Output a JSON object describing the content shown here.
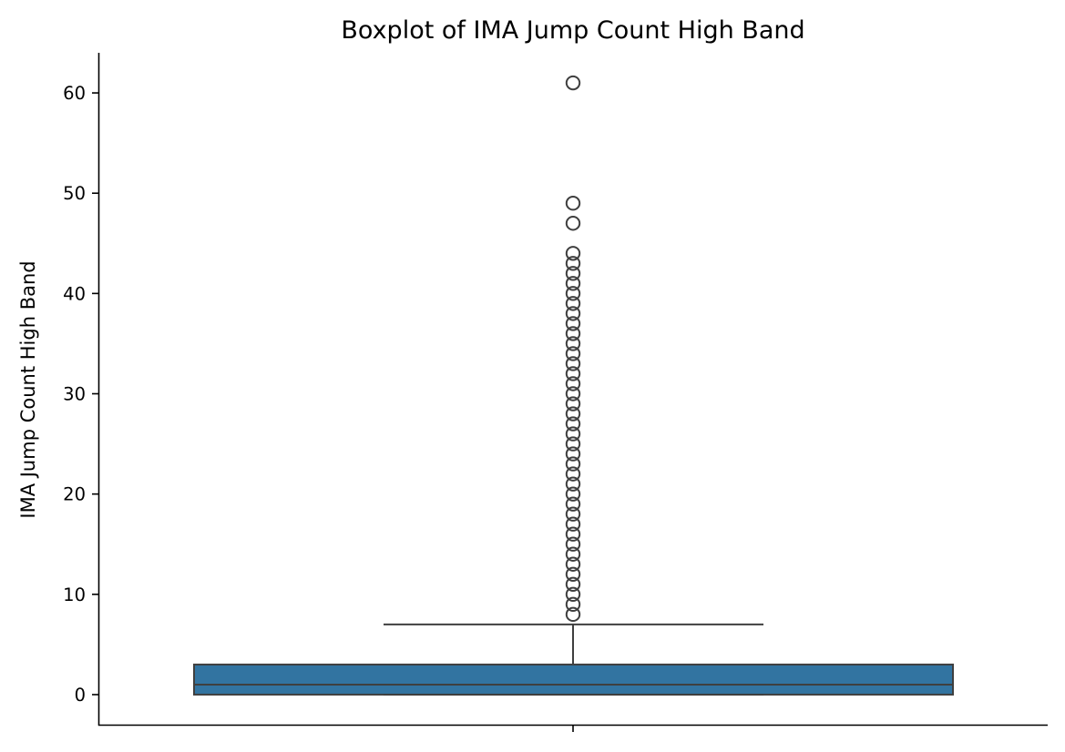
{
  "chart_data": {
    "type": "boxplot",
    "title": "Boxplot of IMA Jump Count High Band",
    "xlabel": "",
    "ylabel": "IMA Jump Count High Band",
    "ylim": [
      -3,
      64
    ],
    "yticks": [
      0,
      10,
      20,
      30,
      40,
      50,
      60
    ],
    "grid": false,
    "box": {
      "min_whisker": 0,
      "q1": 0,
      "median": 1,
      "q3": 3,
      "max_whisker": 7,
      "color": "#3274a1",
      "edge_color": "#3f3f3f"
    },
    "outliers": [
      8,
      9,
      10,
      11,
      12,
      13,
      14,
      15,
      16,
      17,
      18,
      19,
      20,
      21,
      22,
      23,
      24,
      25,
      26,
      27,
      28,
      29,
      30,
      31,
      32,
      33,
      34,
      35,
      36,
      37,
      38,
      39,
      40,
      41,
      42,
      43,
      44,
      47,
      49,
      61
    ]
  }
}
